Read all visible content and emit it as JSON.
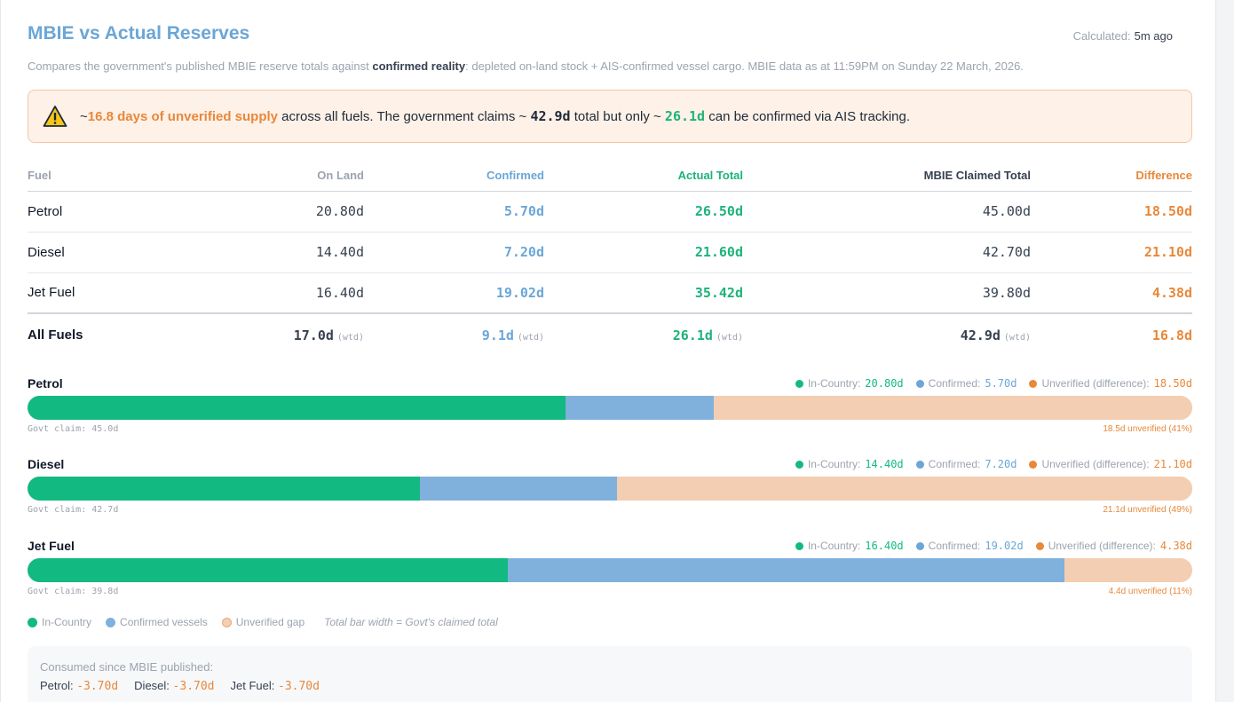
{
  "header": {
    "title": "MBIE vs Actual Reserves",
    "calculated_label": "Calculated:",
    "calculated_value": "5m ago",
    "subtitle_pre": "Compares the government's published MBIE reserve totals against ",
    "subtitle_bold": "confirmed reality",
    "subtitle_post": ": depleted on-land stock + AIS-confirmed vessel cargo. MBIE data as at 11:59PM on Sunday 22 March, 2026."
  },
  "alert": {
    "icon": "warning-triangle-icon",
    "prefix": "~",
    "highlight": "16.8 days of unverified supply",
    "text1": " across all fuels. The government claims ~ ",
    "claimed": "42.9d",
    "text2": " total but only ~ ",
    "confirmed": "26.1d",
    "text3": " can be confirmed via AIS tracking."
  },
  "table": {
    "headers": [
      "Fuel",
      "On Land",
      "Confirmed",
      "Actual Total",
      "MBIE Claimed Total",
      "Difference"
    ],
    "rows": [
      {
        "fuel": "Petrol",
        "on_land": "20.80d",
        "confirmed": "5.70d",
        "actual": "26.50d",
        "mbie": "45.00d",
        "diff": "18.50d"
      },
      {
        "fuel": "Diesel",
        "on_land": "14.40d",
        "confirmed": "7.20d",
        "actual": "21.60d",
        "mbie": "42.70d",
        "diff": "21.10d"
      },
      {
        "fuel": "Jet Fuel",
        "on_land": "16.40d",
        "confirmed": "19.02d",
        "actual": "35.42d",
        "mbie": "39.80d",
        "diff": "4.38d"
      }
    ],
    "total": {
      "fuel": "All Fuels",
      "on_land": "17.0d",
      "confirmed": "9.1d",
      "actual": "26.1d",
      "mbie": "42.9d",
      "diff": "16.8d",
      "wtd": "(wtd)"
    }
  },
  "bars": [
    {
      "name": "Petrol",
      "in_country_label": "In-Country:",
      "in_country": "20.80d",
      "confirmed_label": "Confirmed:",
      "confirmed": "5.70d",
      "unverified_label": "Unverified (difference):",
      "unverified": "18.50d",
      "claim": "Govt claim: 45.0d",
      "unverified_note": "18.5d unverified (41%)",
      "values": {
        "in_country": 20.8,
        "confirmed": 5.7,
        "unverified": 18.5,
        "claimed": 45.0
      }
    },
    {
      "name": "Diesel",
      "in_country_label": "In-Country:",
      "in_country": "14.40d",
      "confirmed_label": "Confirmed:",
      "confirmed": "7.20d",
      "unverified_label": "Unverified (difference):",
      "unverified": "21.10d",
      "claim": "Govt claim: 42.7d",
      "unverified_note": "21.1d unverified (49%)",
      "values": {
        "in_country": 14.4,
        "confirmed": 7.2,
        "unverified": 21.1,
        "claimed": 42.7
      }
    },
    {
      "name": "Jet Fuel",
      "in_country_label": "In-Country:",
      "in_country": "16.40d",
      "confirmed_label": "Confirmed:",
      "confirmed": "19.02d",
      "unverified_label": "Unverified (difference):",
      "unverified": "4.38d",
      "claim": "Govt claim: 39.8d",
      "unverified_note": "4.4d unverified (11%)",
      "values": {
        "in_country": 16.4,
        "confirmed": 19.02,
        "unverified": 4.38,
        "claimed": 39.8
      }
    }
  ],
  "legend": {
    "in_country": "In-Country",
    "confirmed": "Confirmed vessels",
    "unverified": "Unverified gap",
    "note": "Total bar width = Govt's claimed total"
  },
  "consumed": {
    "label": "Consumed since MBIE published:",
    "items": [
      {
        "fuel": "Petrol:",
        "value": "-3.70d"
      },
      {
        "fuel": "Diesel:",
        "value": "-3.70d"
      },
      {
        "fuel": "Jet Fuel:",
        "value": "-3.70d"
      }
    ]
  },
  "colors": {
    "in_country": "#12b981",
    "confirmed": "#7fb1dc",
    "unverified": "#f3ceb2",
    "accent_orange": "#e8883a",
    "title_blue": "#6ba6d6"
  }
}
